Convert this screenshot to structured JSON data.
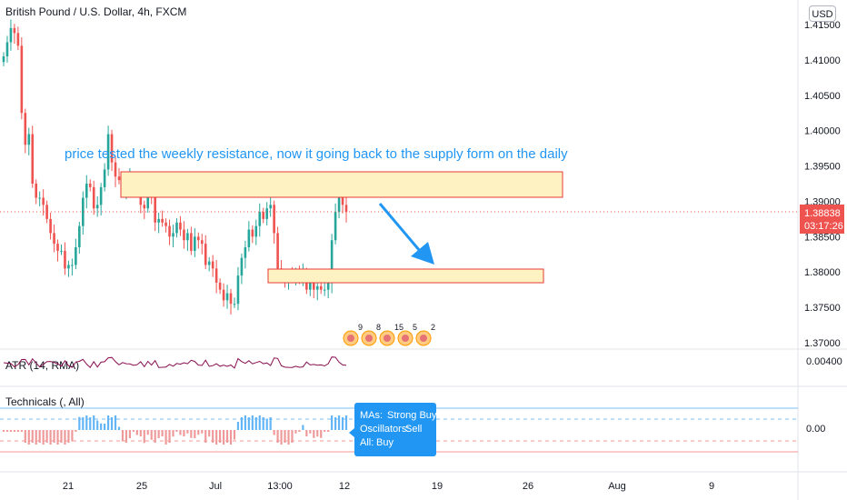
{
  "header": {
    "title": "British Pound / U.S. Dollar, 4h, FXCM",
    "currency_button": "USD"
  },
  "annotation": {
    "text": "price tested the weekly resistance, now it going back to the supply form on the daily"
  },
  "colors": {
    "up": "#26a69a",
    "down": "#ef5350",
    "zone_fill": "#fff2c2",
    "zone_border": "#e53935",
    "arrow": "#2196f3",
    "price_tag": "#ef5350",
    "tooltip_bg": "#2196f3",
    "atr_line": "#880e4f"
  },
  "price_axis": {
    "labels": [
      "1.41500",
      "1.41000",
      "1.40500",
      "1.40000",
      "1.39500",
      "1.39000",
      "1.38500",
      "1.38000",
      "1.37500",
      "1.37000"
    ],
    "current_price": "1.38838",
    "countdown": "03:17:26"
  },
  "time_axis": {
    "labels": [
      "21",
      "25",
      "Jul",
      "13:00",
      "12",
      "19",
      "26",
      "Aug",
      "9"
    ]
  },
  "event_flags": [
    {
      "count": "9"
    },
    {
      "count": "8"
    },
    {
      "count": "15"
    },
    {
      "count": "5"
    },
    {
      "count": "2"
    }
  ],
  "atr_pane": {
    "title": "ATR (14, RMA)",
    "value": "0.00400"
  },
  "technicals_pane": {
    "title": "Technicals (, All)",
    "value": "0.00",
    "tooltip": {
      "mas_label": "MAs:",
      "mas_value": "Strong Buy",
      "osc_label": "Oscillators:",
      "osc_value": "Sell",
      "all_label": "All:",
      "all_value": "Buy"
    }
  },
  "chart_data": {
    "type": "candlestick",
    "symbol": "British Pound / U.S. Dollar",
    "interval": "4h",
    "source": "FXCM",
    "ylim": [
      1.3685,
      1.4165
    ],
    "current_price": 1.38838,
    "series_close": [
      1.4105,
      1.4125,
      1.4145,
      1.4138,
      1.412,
      1.4025,
      1.398,
      1.3995,
      1.3925,
      1.3905,
      1.3905,
      1.3895,
      1.3875,
      1.3855,
      1.384,
      1.383,
      1.383,
      1.3805,
      1.381,
      1.381,
      1.3835,
      1.3865,
      1.3905,
      1.3925,
      1.392,
      1.389,
      1.3895,
      1.392,
      1.3945,
      1.3995,
      1.3955,
      1.3935,
      1.393,
      1.3915,
      1.3925,
      1.3935,
      1.393,
      1.392,
      1.3895,
      1.389,
      1.392,
      1.3905,
      1.387,
      1.3875,
      1.387,
      1.3865,
      1.385,
      1.3855,
      1.387,
      1.386,
      1.3845,
      1.3855,
      1.383,
      1.385,
      1.3845,
      1.384,
      1.381,
      1.3815,
      1.3805,
      1.3785,
      1.3775,
      1.376,
      1.377,
      1.3755,
      1.3755,
      1.3795,
      1.382,
      1.3835,
      1.386,
      1.385,
      1.3865,
      1.3885,
      1.3875,
      1.389,
      1.3895,
      1.3855,
      1.3805,
      1.3795,
      1.379,
      1.3795,
      1.379,
      1.38,
      1.3795,
      1.38,
      1.3775,
      1.3785,
      1.3775,
      1.378,
      1.3775,
      1.3775,
      1.3785,
      1.3845,
      1.3885,
      1.3905,
      1.3895,
      1.3885
    ],
    "zones": [
      {
        "name": "weekly resistance",
        "price_low": 1.3905,
        "price_high": 1.394
      },
      {
        "name": "daily supply",
        "price_low": 1.3787,
        "price_high": 1.3802
      }
    ],
    "atr": {
      "value": 0.004
    },
    "technicals": {
      "value": 0.0,
      "mas": "Strong Buy",
      "oscillators": "Sell",
      "all": "Buy"
    }
  }
}
